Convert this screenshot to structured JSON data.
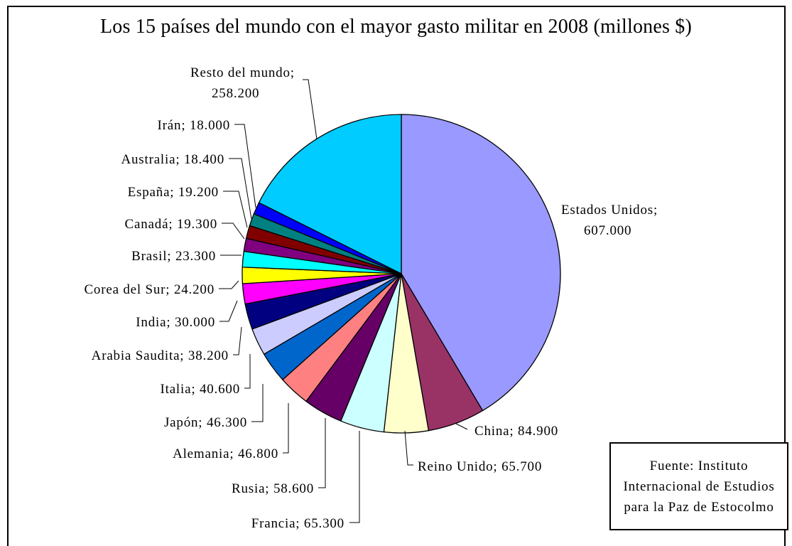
{
  "chart_data": {
    "type": "pie",
    "title": "Los 15 países del mundo con el mayor gasto militar en 2008 (millones $)",
    "slices": [
      {
        "label": "Estados Unidos",
        "value": 607000,
        "value_text": "607.000",
        "color": "#9999FF"
      },
      {
        "label": "China",
        "value": 84900,
        "value_text": "84.900",
        "color": "#993366"
      },
      {
        "label": "Reino Unido",
        "value": 65700,
        "value_text": "65.700",
        "color": "#FFFFCC"
      },
      {
        "label": "Francia",
        "value": 65300,
        "value_text": "65.300",
        "color": "#CCFFFF"
      },
      {
        "label": "Rusia",
        "value": 58600,
        "value_text": "58.600",
        "color": "#660066"
      },
      {
        "label": "Alemania",
        "value": 46800,
        "value_text": "46.800",
        "color": "#FF8080"
      },
      {
        "label": "Japón",
        "value": 46300,
        "value_text": "46.300",
        "color": "#0066CC"
      },
      {
        "label": "Italia",
        "value": 40600,
        "value_text": "40.600",
        "color": "#CCCCFF"
      },
      {
        "label": "Arabia Saudita",
        "value": 38200,
        "value_text": "38.200",
        "color": "#000080"
      },
      {
        "label": "India",
        "value": 30000,
        "value_text": "30.000",
        "color": "#FF00FF"
      },
      {
        "label": "Corea del Sur",
        "value": 24200,
        "value_text": "24.200",
        "color": "#FFFF00"
      },
      {
        "label": "Brasil",
        "value": 23300,
        "value_text": "23.300",
        "color": "#00FFFF"
      },
      {
        "label": "Canadá",
        "value": 19300,
        "value_text": "19.300",
        "color": "#800080"
      },
      {
        "label": "España",
        "value": 19200,
        "value_text": "19.200",
        "color": "#800000"
      },
      {
        "label": "Australia",
        "value": 18400,
        "value_text": "18.400",
        "color": "#008080"
      },
      {
        "label": "Irán",
        "value": 18000,
        "value_text": "18.000",
        "color": "#0000FF"
      },
      {
        "label": "Resto del mundo",
        "value": 258200,
        "value_text": "258.200",
        "color": "#00CCFF"
      }
    ],
    "legend": "none"
  },
  "source_note": {
    "lines": [
      "Fuente: Instituto",
      "Internacional de Estudios",
      "para la Paz de Estocolmo"
    ]
  }
}
